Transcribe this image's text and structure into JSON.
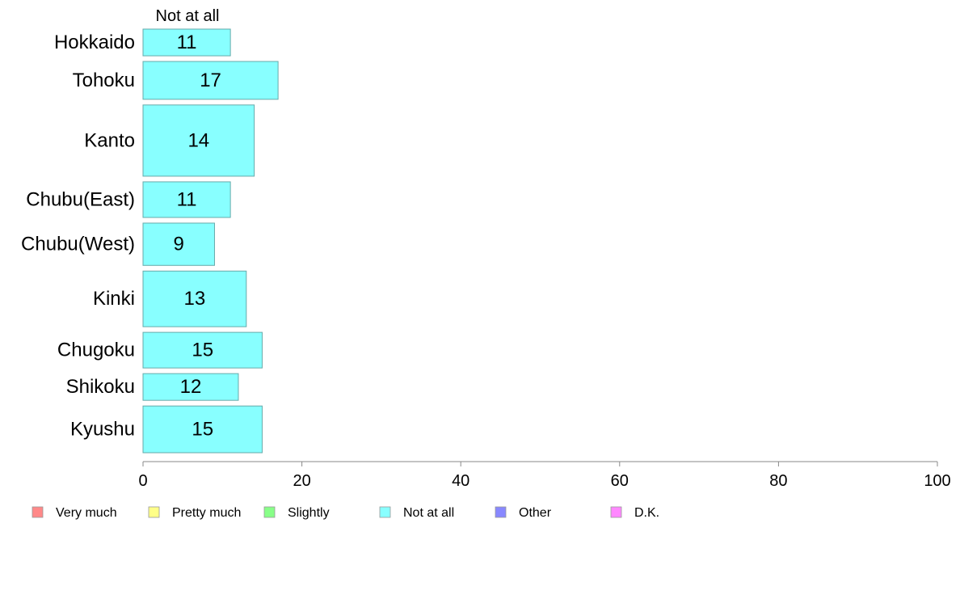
{
  "chart_data": {
    "type": "bar",
    "orientation": "horizontal",
    "series_label": "Not at all",
    "categories": [
      "Hokkaido",
      "Tohoku",
      "Kanto",
      "Chubu(East)",
      "Chubu(West)",
      "Kinki",
      "Chugoku",
      "Shikoku",
      "Kyushu"
    ],
    "values": [
      11,
      17,
      14,
      11,
      9,
      13,
      15,
      12,
      15
    ],
    "value_labels": [
      "11",
      "17",
      "14",
      "11",
      "9",
      "13",
      "15",
      "12",
      "15"
    ],
    "relative_widths": [
      0.6,
      0.85,
      1.6,
      0.8,
      0.95,
      1.25,
      0.8,
      0.6,
      1.05
    ],
    "xlim": [
      0,
      100
    ],
    "xticks": [
      0,
      20,
      40,
      60,
      80,
      100
    ],
    "xtick_labels": [
      "0",
      "20",
      "40",
      "60",
      "80",
      "100"
    ],
    "bar_color": "#88ffff",
    "legend_position": "bottom",
    "legend": [
      {
        "label": "Very much",
        "color": "#ff8888"
      },
      {
        "label": "Pretty much",
        "color": "#ffff88"
      },
      {
        "label": "Slightly",
        "color": "#88ff88"
      },
      {
        "label": "Not at all",
        "color": "#88ffff"
      },
      {
        "label": "Other",
        "color": "#8888ff"
      },
      {
        "label": "D.K.",
        "color": "#ff88ff"
      }
    ]
  }
}
